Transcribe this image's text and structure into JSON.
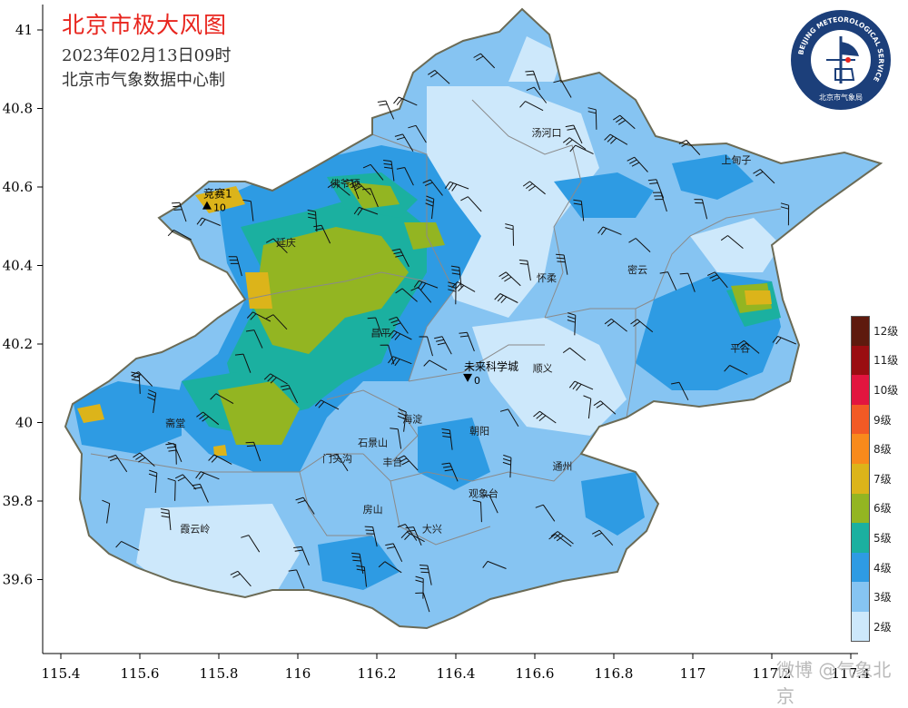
{
  "title": "北京市极大风图",
  "subtitle": "2023年02月13日09时",
  "producer": "北京市气象数据中心制",
  "watermark": "微博 @气象北京",
  "logo": {
    "ring_text": "BEIJING METEOROLOGICAL SERVICE",
    "cn_text": "北京市气象局"
  },
  "axes": {
    "x_ticks": [
      "115.4",
      "115.6",
      "115.8",
      "116",
      "116.2",
      "116.4",
      "116.6",
      "116.8",
      "117",
      "117.2",
      "117.4"
    ],
    "y_ticks": [
      "41",
      "40.8",
      "40.6",
      "40.4",
      "40.2",
      "40",
      "39.8",
      "39.6"
    ]
  },
  "legend": [
    {
      "label": "12级",
      "color": "#5e1a0e"
    },
    {
      "label": "11级",
      "color": "#9a0d11"
    },
    {
      "label": "10级",
      "color": "#e2153f"
    },
    {
      "label": "9级",
      "color": "#f25a25"
    },
    {
      "label": "8级",
      "color": "#f88a1c"
    },
    {
      "label": "7级",
      "color": "#dcb41a"
    },
    {
      "label": "6级",
      "color": "#93b522"
    },
    {
      "label": "5级",
      "color": "#1bb0a0"
    },
    {
      "label": "4级",
      "color": "#2e9be3"
    },
    {
      "label": "3级",
      "color": "#86c4f2"
    },
    {
      "label": "2级",
      "color": "#cde8fb"
    }
  ],
  "places": [
    {
      "name": "汤河口",
      "lon": 116.63,
      "lat": 40.73
    },
    {
      "name": "上甸子",
      "lon": 117.11,
      "lat": 40.66
    },
    {
      "name": "佛爷顶",
      "lon": 116.12,
      "lat": 40.6
    },
    {
      "name": "延庆",
      "lon": 115.97,
      "lat": 40.45
    },
    {
      "name": "怀柔",
      "lon": 116.63,
      "lat": 40.36
    },
    {
      "name": "密云",
      "lon": 116.86,
      "lat": 40.38
    },
    {
      "name": "昌平",
      "lon": 116.21,
      "lat": 40.22
    },
    {
      "name": "顺义",
      "lon": 116.62,
      "lat": 40.13
    },
    {
      "name": "平谷",
      "lon": 117.12,
      "lat": 40.18
    },
    {
      "name": "斋堂",
      "lon": 115.69,
      "lat": 39.99
    },
    {
      "name": "海淀",
      "lon": 116.29,
      "lat": 40.0
    },
    {
      "name": "朝阳",
      "lon": 116.46,
      "lat": 39.97
    },
    {
      "name": "石景山",
      "lon": 116.19,
      "lat": 39.94
    },
    {
      "name": "门头沟",
      "lon": 116.1,
      "lat": 39.9
    },
    {
      "name": "丰台",
      "lon": 116.24,
      "lat": 39.89
    },
    {
      "name": "通州",
      "lon": 116.67,
      "lat": 39.88
    },
    {
      "name": "观象台",
      "lon": 116.47,
      "lat": 39.81
    },
    {
      "name": "房山",
      "lon": 116.19,
      "lat": 39.77
    },
    {
      "name": "霞云岭",
      "lon": 115.74,
      "lat": 39.72
    },
    {
      "name": "大兴",
      "lon": 116.34,
      "lat": 39.72
    }
  ],
  "stations": [
    {
      "name": "竞赛1",
      "value": "10",
      "lon": 115.77,
      "lat": 40.55
    },
    {
      "name": "未来科学城",
      "value": "0",
      "lon": 116.43,
      "lat": 40.11
    }
  ]
}
